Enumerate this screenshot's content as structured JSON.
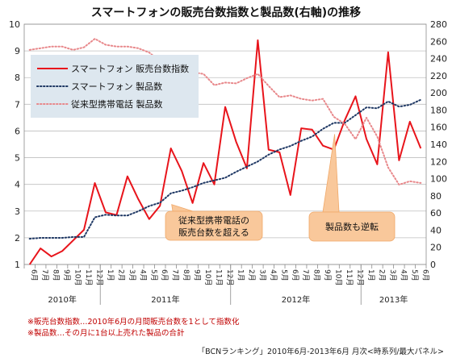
{
  "chart_data": {
    "type": "line",
    "title": "スマートフォンの販売台数指数と製品数(右軸)の推移",
    "x_months": [
      "6月",
      "7月",
      "8月",
      "9月",
      "10月",
      "11月",
      "12月",
      "1月",
      "2月",
      "3月",
      "4月",
      "5月",
      "6月",
      "7月",
      "8月",
      "9月",
      "10月",
      "11月",
      "12月",
      "1月",
      "2月",
      "3月",
      "4月",
      "5月",
      "6月",
      "7月",
      "8月",
      "9月",
      "10月",
      "11月",
      "12月",
      "1月",
      "2月",
      "3月",
      "4月",
      "5月",
      "6月"
    ],
    "x_years": [
      {
        "label": "2010年",
        "start": 0,
        "end": 6
      },
      {
        "label": "2011年",
        "start": 7,
        "end": 18
      },
      {
        "label": "2012年",
        "start": 19,
        "end": 30
      },
      {
        "label": "2013年",
        "start": 31,
        "end": 36
      }
    ],
    "y_left": {
      "min": 1,
      "max": 10,
      "ticks": [
        1,
        2,
        3,
        4,
        5,
        6,
        7,
        8,
        9,
        10
      ]
    },
    "y_right": {
      "min": 0,
      "max": 280,
      "ticks": [
        0,
        20,
        40,
        60,
        80,
        100,
        120,
        140,
        160,
        180,
        200,
        220,
        240,
        260,
        280
      ]
    },
    "grid": true,
    "legend": {
      "position": "top-left"
    },
    "series": [
      {
        "name": "スマートフォン 販売台数指数",
        "axis": "left",
        "color": "#e8141b",
        "style": "solid",
        "values": [
          1.0,
          1.6,
          1.3,
          1.5,
          1.9,
          2.3,
          4.05,
          2.95,
          2.85,
          4.3,
          3.45,
          2.7,
          3.2,
          5.35,
          4.5,
          3.3,
          4.8,
          4.0,
          6.9,
          5.6,
          4.6,
          9.4,
          5.3,
          5.2,
          3.6,
          6.1,
          6.05,
          5.45,
          5.3,
          6.4,
          7.3,
          5.7,
          4.75,
          8.95,
          4.9,
          6.35,
          5.35
        ]
      },
      {
        "name": "スマートフォン 製品数",
        "axis": "right",
        "color": "#1f3864",
        "style": "dotted",
        "values": [
          30,
          31,
          31,
          31,
          32,
          32,
          55,
          58,
          57,
          57,
          62,
          68,
          72,
          83,
          86,
          90,
          95,
          98,
          101,
          108,
          114,
          120,
          128,
          134,
          138,
          144,
          149,
          158,
          165,
          165,
          174,
          183,
          182,
          190,
          184,
          186,
          192
        ]
      },
      {
        "name": "従来型携帯電話  製品数",
        "axis": "right",
        "color": "#e8888b",
        "style": "dotted",
        "values": [
          250,
          252,
          254,
          254,
          250,
          253,
          263,
          256,
          254,
          254,
          252,
          247,
          237,
          237,
          231,
          224,
          222,
          209,
          212,
          211,
          217,
          222,
          208,
          195,
          197,
          193,
          191,
          193,
          172,
          164,
          146,
          171,
          149,
          113,
          93,
          97,
          95
        ]
      }
    ],
    "annotations": [
      {
        "text": "従来型携帯電話の\n販売台数を超える",
        "target_index": 13
      },
      {
        "text": "製品数も逆転",
        "target_index": 28
      }
    ]
  },
  "footnotes": [
    "※販売台数指数…2010年6月の月間販売台数を1として指数化",
    "※製品数…その月に1台以上売れた製品の合計"
  ],
  "source": "「BCNランキング」2010年6月-2013年6月 月次<時系列/最大パネル>"
}
